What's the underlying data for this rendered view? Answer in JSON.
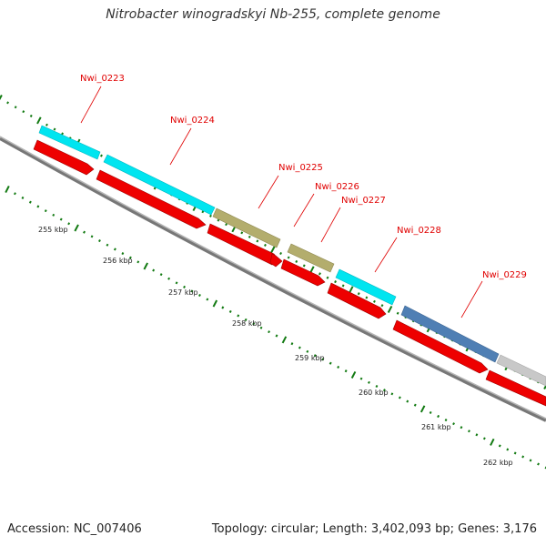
{
  "title": "Nitrobacter winogradskyi Nb-255, complete genome",
  "accession": "Accession: NC_007406",
  "summary": "Topology: circular; Length: 3,402,093 bp; Genes: 3,176",
  "colors": {
    "backbone": "#8a8a8a",
    "cds": "#ee0000",
    "cyan_feature": "#00e5f0",
    "olive_feature": "#b3ad6d",
    "blue_feature": "#4f7fb4",
    "gray_feature": "#c8c8c8",
    "tick": "#127a12",
    "label": "#e00000"
  },
  "scale_labels": [
    "255 kbp",
    "256 kbp",
    "257 kbp",
    "258 kbp",
    "259 kbp",
    "260 kbp",
    "261 kbp",
    "262 kbp"
  ],
  "genes": [
    {
      "id": "Nwi_0223",
      "feature": "cyan"
    },
    {
      "id": "Nwi_0224",
      "feature": "cyan"
    },
    {
      "id": "Nwi_0225",
      "feature": "olive"
    },
    {
      "id": "Nwi_0226",
      "feature": "none"
    },
    {
      "id": "Nwi_0227",
      "feature": "olive"
    },
    {
      "id": "Nwi_0228",
      "feature": "cyan"
    },
    {
      "id": "Nwi_0229",
      "feature": "blue"
    }
  ]
}
